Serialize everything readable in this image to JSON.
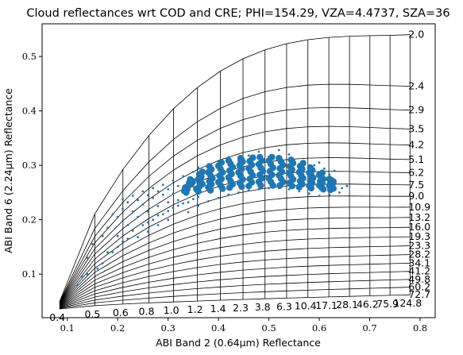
{
  "chart_data": {
    "type": "scatter",
    "title": "Cloud reflectances wrt COD and CRE; PHI=154.29, VZA=4.4737, SZA=36",
    "xlabel": "ABI Band 2 (0.64μm) Reflectance",
    "ylabel": "ABI Band 6 (2.24μm) Reflectance",
    "xlim": [
      0.05,
      0.83
    ],
    "ylim": [
      0.02,
      0.56
    ],
    "xticks": [
      0.1,
      0.2,
      0.3,
      0.4,
      0.5,
      0.6,
      0.7,
      0.8
    ],
    "xtick_labels": [
      "0.1",
      "0.2",
      "0.3",
      "0.4",
      "0.5",
      "0.6",
      "0.7",
      "0.8"
    ],
    "yticks": [
      0.1,
      0.2,
      0.3,
      0.4,
      0.5
    ],
    "ytick_labels": [
      "0.1",
      "0.2",
      "0.3",
      "0.4",
      "0.5"
    ],
    "grid": false,
    "lookup_table_grid": {
      "color": "#000000",
      "cre_labels": [
        "2.0",
        "2.4",
        "2.9",
        "3.5",
        "4.2",
        "5.1",
        "6.2",
        "7.5",
        "9.0",
        "10.9",
        "13.2",
        "16.0",
        "19.3",
        "23.3",
        "28.2",
        "34.1",
        "41.2",
        "49.8",
        "60.2",
        "72.7"
      ],
      "cod_labels_bottom": [
        "0.4",
        "0.5",
        "0.6",
        "0.8",
        "1.0",
        "1.2",
        "1.4",
        "2.3",
        "3.8",
        "6.3",
        "10.4",
        "17.1",
        "28.1",
        "46.2",
        "75.9",
        "124.8"
      ],
      "anchor_points": [
        {
          "x": 0.085,
          "y": 0.05
        },
        {
          "x": 0.78,
          "y": 0.54
        },
        {
          "x": 0.78,
          "y": 0.062
        },
        {
          "x": 0.085,
          "y": 0.036
        }
      ]
    },
    "series": [
      {
        "color": "#1f77b4",
        "core_points": [
          [
            0.34,
            0.262
          ],
          [
            0.36,
            0.27
          ],
          [
            0.38,
            0.276
          ],
          [
            0.4,
            0.281
          ],
          [
            0.42,
            0.284
          ],
          [
            0.44,
            0.287
          ],
          [
            0.46,
            0.288
          ],
          [
            0.48,
            0.289
          ],
          [
            0.5,
            0.289
          ],
          [
            0.52,
            0.288
          ],
          [
            0.54,
            0.286
          ],
          [
            0.56,
            0.282
          ],
          [
            0.58,
            0.277
          ],
          [
            0.6,
            0.271
          ],
          [
            0.62,
            0.265
          ]
        ],
        "core_half_width": [
          0.012,
          0.018,
          0.022,
          0.024,
          0.025,
          0.026,
          0.026,
          0.026,
          0.026,
          0.025,
          0.024,
          0.022,
          0.019,
          0.015,
          0.01
        ],
        "scattered_points": [
          [
            0.14,
            0.13
          ],
          [
            0.15,
            0.155
          ],
          [
            0.17,
            0.17
          ],
          [
            0.18,
            0.185
          ],
          [
            0.19,
            0.21
          ],
          [
            0.2,
            0.205
          ],
          [
            0.21,
            0.22
          ],
          [
            0.22,
            0.232
          ],
          [
            0.23,
            0.215
          ],
          [
            0.24,
            0.236
          ],
          [
            0.25,
            0.228
          ],
          [
            0.26,
            0.245
          ],
          [
            0.27,
            0.24
          ],
          [
            0.28,
            0.252
          ],
          [
            0.29,
            0.246
          ],
          [
            0.3,
            0.256
          ],
          [
            0.31,
            0.248
          ],
          [
            0.32,
            0.262
          ],
          [
            0.2,
            0.17
          ],
          [
            0.22,
            0.19
          ],
          [
            0.24,
            0.205
          ],
          [
            0.26,
            0.215
          ],
          [
            0.28,
            0.225
          ],
          [
            0.3,
            0.232
          ],
          [
            0.32,
            0.236
          ],
          [
            0.17,
            0.12
          ],
          [
            0.19,
            0.14
          ],
          [
            0.21,
            0.16
          ],
          [
            0.23,
            0.18
          ],
          [
            0.25,
            0.19
          ],
          [
            0.27,
            0.2
          ],
          [
            0.29,
            0.21
          ],
          [
            0.31,
            0.222
          ],
          [
            0.33,
            0.23
          ],
          [
            0.35,
            0.238
          ],
          [
            0.13,
            0.095
          ],
          [
            0.16,
            0.11
          ],
          [
            0.2,
            0.15
          ],
          [
            0.22,
            0.165
          ],
          [
            0.26,
            0.178
          ],
          [
            0.28,
            0.19
          ],
          [
            0.3,
            0.2
          ],
          [
            0.34,
            0.214
          ],
          [
            0.36,
            0.226
          ],
          [
            0.38,
            0.234
          ],
          [
            0.4,
            0.24
          ],
          [
            0.42,
            0.246
          ],
          [
            0.44,
            0.25
          ],
          [
            0.46,
            0.254
          ],
          [
            0.48,
            0.256
          ],
          [
            0.5,
            0.258
          ],
          [
            0.52,
            0.258
          ],
          [
            0.54,
            0.256
          ],
          [
            0.56,
            0.252
          ],
          [
            0.58,
            0.248
          ],
          [
            0.6,
            0.244
          ],
          [
            0.62,
            0.246
          ],
          [
            0.64,
            0.25
          ],
          [
            0.645,
            0.258
          ],
          [
            0.62,
            0.258
          ],
          [
            0.42,
            0.315
          ],
          [
            0.45,
            0.312
          ],
          [
            0.47,
            0.314
          ],
          [
            0.5,
            0.316
          ],
          [
            0.52,
            0.314
          ],
          [
            0.55,
            0.31
          ],
          [
            0.57,
            0.306
          ],
          [
            0.59,
            0.3
          ],
          [
            0.61,
            0.294
          ],
          [
            0.63,
            0.29
          ],
          [
            0.4,
            0.306
          ],
          [
            0.38,
            0.3
          ],
          [
            0.36,
            0.296
          ],
          [
            0.35,
            0.288
          ],
          [
            0.33,
            0.28
          ],
          [
            0.31,
            0.272
          ],
          [
            0.29,
            0.264
          ],
          [
            0.27,
            0.258
          ],
          [
            0.25,
            0.252
          ],
          [
            0.23,
            0.244
          ],
          [
            0.21,
            0.238
          ],
          [
            0.52,
            0.328
          ],
          [
            0.48,
            0.325
          ],
          [
            0.6,
            0.305
          ],
          [
            0.655,
            0.262
          ],
          [
            0.12,
            0.08
          ],
          [
            0.14,
            0.1
          ],
          [
            0.18,
            0.14
          ],
          [
            0.24,
            0.168
          ],
          [
            0.26,
            0.195
          ],
          [
            0.28,
            0.208
          ],
          [
            0.3,
            0.216
          ],
          [
            0.32,
            0.226
          ],
          [
            0.34,
            0.232
          ],
          [
            0.36,
            0.242
          ],
          [
            0.44,
            0.308
          ],
          [
            0.46,
            0.318
          ],
          [
            0.54,
            0.32
          ],
          [
            0.58,
            0.296
          ],
          [
            0.62,
            0.283
          ]
        ]
      }
    ]
  }
}
